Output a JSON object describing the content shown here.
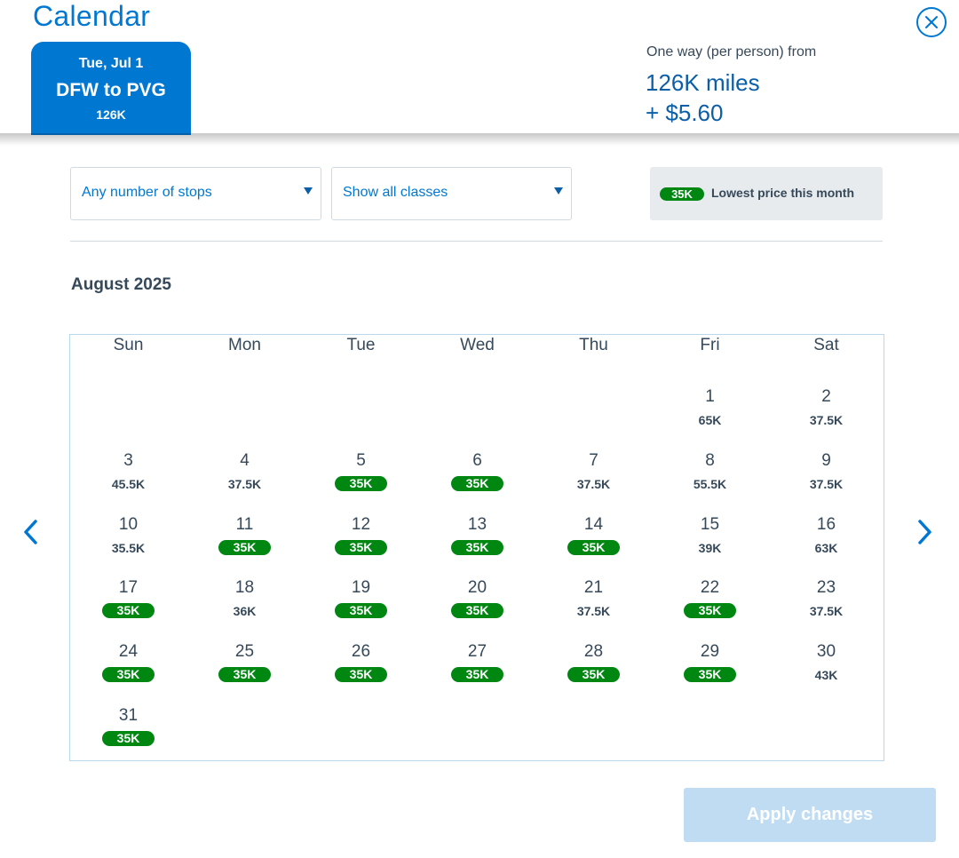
{
  "header": {
    "title": "Calendar",
    "trip": {
      "date": "Tue, Jul 1",
      "route": "DFW to PVG",
      "price": "126K"
    },
    "fare": {
      "label": "One way (per person) from",
      "miles": "126K miles",
      "taxes": "+ $5.60"
    }
  },
  "filters": {
    "stops": {
      "selected": "Any number of stops"
    },
    "classes": {
      "selected": "Show all classes"
    }
  },
  "legend": {
    "badge": "35K",
    "text": "Lowest price this month"
  },
  "calendar": {
    "month": "August 2025",
    "weekdays": [
      "Sun",
      "Mon",
      "Tue",
      "Wed",
      "Thu",
      "Fri",
      "Sat"
    ],
    "first_weekday_index": 5,
    "days": [
      {
        "day": "1",
        "price": "65K",
        "lowest": false
      },
      {
        "day": "2",
        "price": "37.5K",
        "lowest": false
      },
      {
        "day": "3",
        "price": "45.5K",
        "lowest": false
      },
      {
        "day": "4",
        "price": "37.5K",
        "lowest": false
      },
      {
        "day": "5",
        "price": "35K",
        "lowest": true
      },
      {
        "day": "6",
        "price": "35K",
        "lowest": true
      },
      {
        "day": "7",
        "price": "37.5K",
        "lowest": false
      },
      {
        "day": "8",
        "price": "55.5K",
        "lowest": false
      },
      {
        "day": "9",
        "price": "37.5K",
        "lowest": false
      },
      {
        "day": "10",
        "price": "35.5K",
        "lowest": false
      },
      {
        "day": "11",
        "price": "35K",
        "lowest": true
      },
      {
        "day": "12",
        "price": "35K",
        "lowest": true
      },
      {
        "day": "13",
        "price": "35K",
        "lowest": true
      },
      {
        "day": "14",
        "price": "35K",
        "lowest": true
      },
      {
        "day": "15",
        "price": "39K",
        "lowest": false
      },
      {
        "day": "16",
        "price": "63K",
        "lowest": false
      },
      {
        "day": "17",
        "price": "35K",
        "lowest": true
      },
      {
        "day": "18",
        "price": "36K",
        "lowest": false
      },
      {
        "day": "19",
        "price": "35K",
        "lowest": true
      },
      {
        "day": "20",
        "price": "35K",
        "lowest": true
      },
      {
        "day": "21",
        "price": "37.5K",
        "lowest": false
      },
      {
        "day": "22",
        "price": "35K",
        "lowest": true
      },
      {
        "day": "23",
        "price": "37.5K",
        "lowest": false
      },
      {
        "day": "24",
        "price": "35K",
        "lowest": true
      },
      {
        "day": "25",
        "price": "35K",
        "lowest": true
      },
      {
        "day": "26",
        "price": "35K",
        "lowest": true
      },
      {
        "day": "27",
        "price": "35K",
        "lowest": true
      },
      {
        "day": "28",
        "price": "35K",
        "lowest": true
      },
      {
        "day": "29",
        "price": "35K",
        "lowest": true
      },
      {
        "day": "30",
        "price": "43K",
        "lowest": false
      },
      {
        "day": "31",
        "price": "35K",
        "lowest": true
      }
    ]
  },
  "actions": {
    "apply_label": "Apply changes"
  },
  "icons": {
    "close": "close-circle-icon",
    "prev": "chevron-left-icon",
    "next": "chevron-right-icon",
    "dropdown": "caret-down-icon"
  },
  "colors": {
    "accent": "#0078d2",
    "lowest_price": "#008712",
    "apply_disabled": "#bfdcf2"
  }
}
